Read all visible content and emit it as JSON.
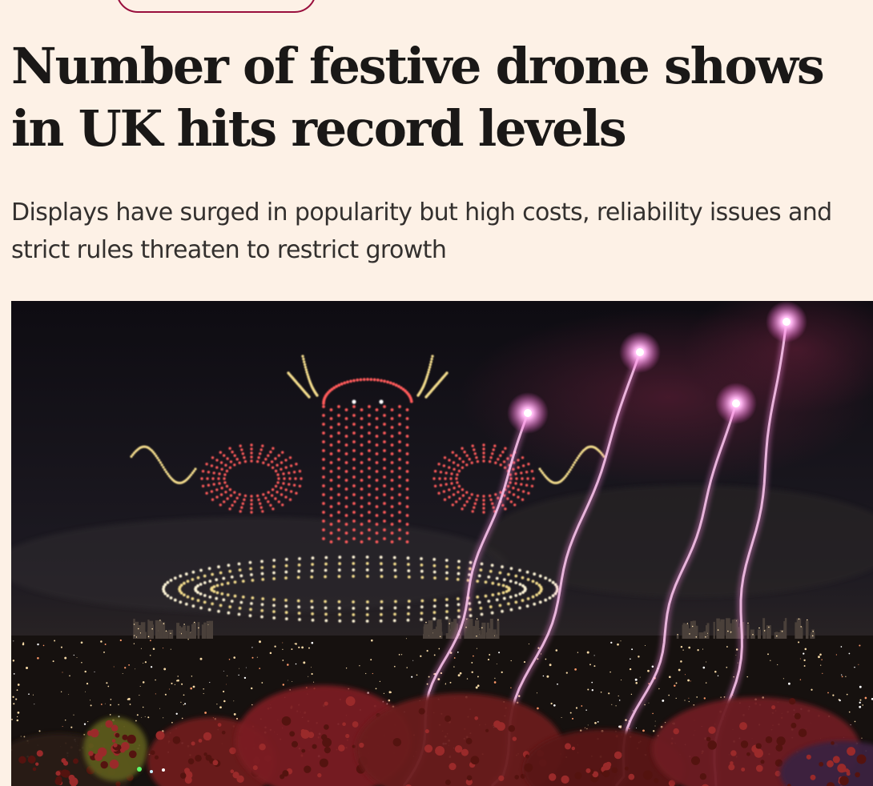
{
  "article": {
    "topic_label": "",
    "headline": "Number of festive drone shows in UK hits record levels",
    "standfirst": "Displays have surged in popularity but high costs, reliability issues and strict rules threaten to restrict growth"
  },
  "hero_image": {
    "alt": "",
    "colors": {
      "sky": "#15131c",
      "drone_red": "#ff5a5a",
      "drone_gold": "#f3dc8c",
      "drone_cream": "#fff6d8",
      "firework": "#ff8fe6",
      "trees": "#7a1f22",
      "city": "#3a3430"
    }
  },
  "theme": {
    "page_background": "#fdf1e6",
    "text_primary": "#1a1817",
    "text_secondary": "#33302e",
    "accent": "#990f3d"
  }
}
